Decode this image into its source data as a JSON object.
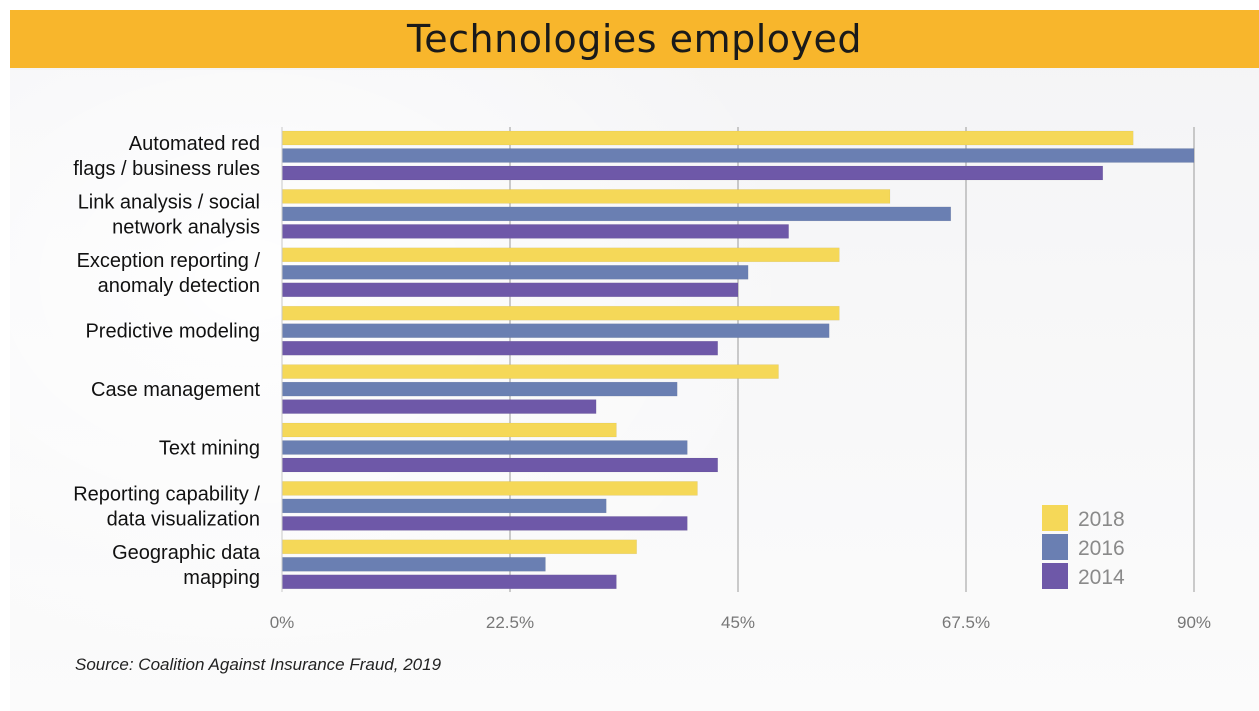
{
  "title": "Technologies employed",
  "source": "Source: Coalition Against Insurance Fraud, 2019",
  "colors": {
    "title_bar": "#f8b62c",
    "2018": "#f5d858",
    "2016": "#6a7fb2",
    "2014": "#6e58a8"
  },
  "chart_data": {
    "type": "bar",
    "orientation": "horizontal",
    "categories": [
      [
        "Automated red",
        "flags / business rules"
      ],
      [
        "Link analysis / social",
        "network analysis"
      ],
      [
        "Exception reporting /",
        "anomaly detection"
      ],
      [
        "Predictive modeling"
      ],
      [
        "Case management"
      ],
      [
        "Text mining"
      ],
      [
        "Reporting capability /",
        "data visualization"
      ],
      [
        "Geographic data",
        "mapping"
      ]
    ],
    "series": [
      {
        "name": "2018",
        "color": "#f5d858",
        "values": [
          84,
          60,
          55,
          55,
          49,
          33,
          41,
          35
        ]
      },
      {
        "name": "2016",
        "color": "#6a7fb2",
        "values": [
          90,
          66,
          46,
          54,
          39,
          40,
          32,
          26
        ]
      },
      {
        "name": "2014",
        "color": "#6e58a8",
        "values": [
          81,
          50,
          45,
          43,
          31,
          43,
          40,
          33
        ]
      }
    ],
    "xticks": [
      "0%",
      "22.5%",
      "45%",
      "67.5%",
      "90%"
    ],
    "xlim": [
      0,
      90
    ],
    "grid": true,
    "legend": "bottom-right"
  }
}
